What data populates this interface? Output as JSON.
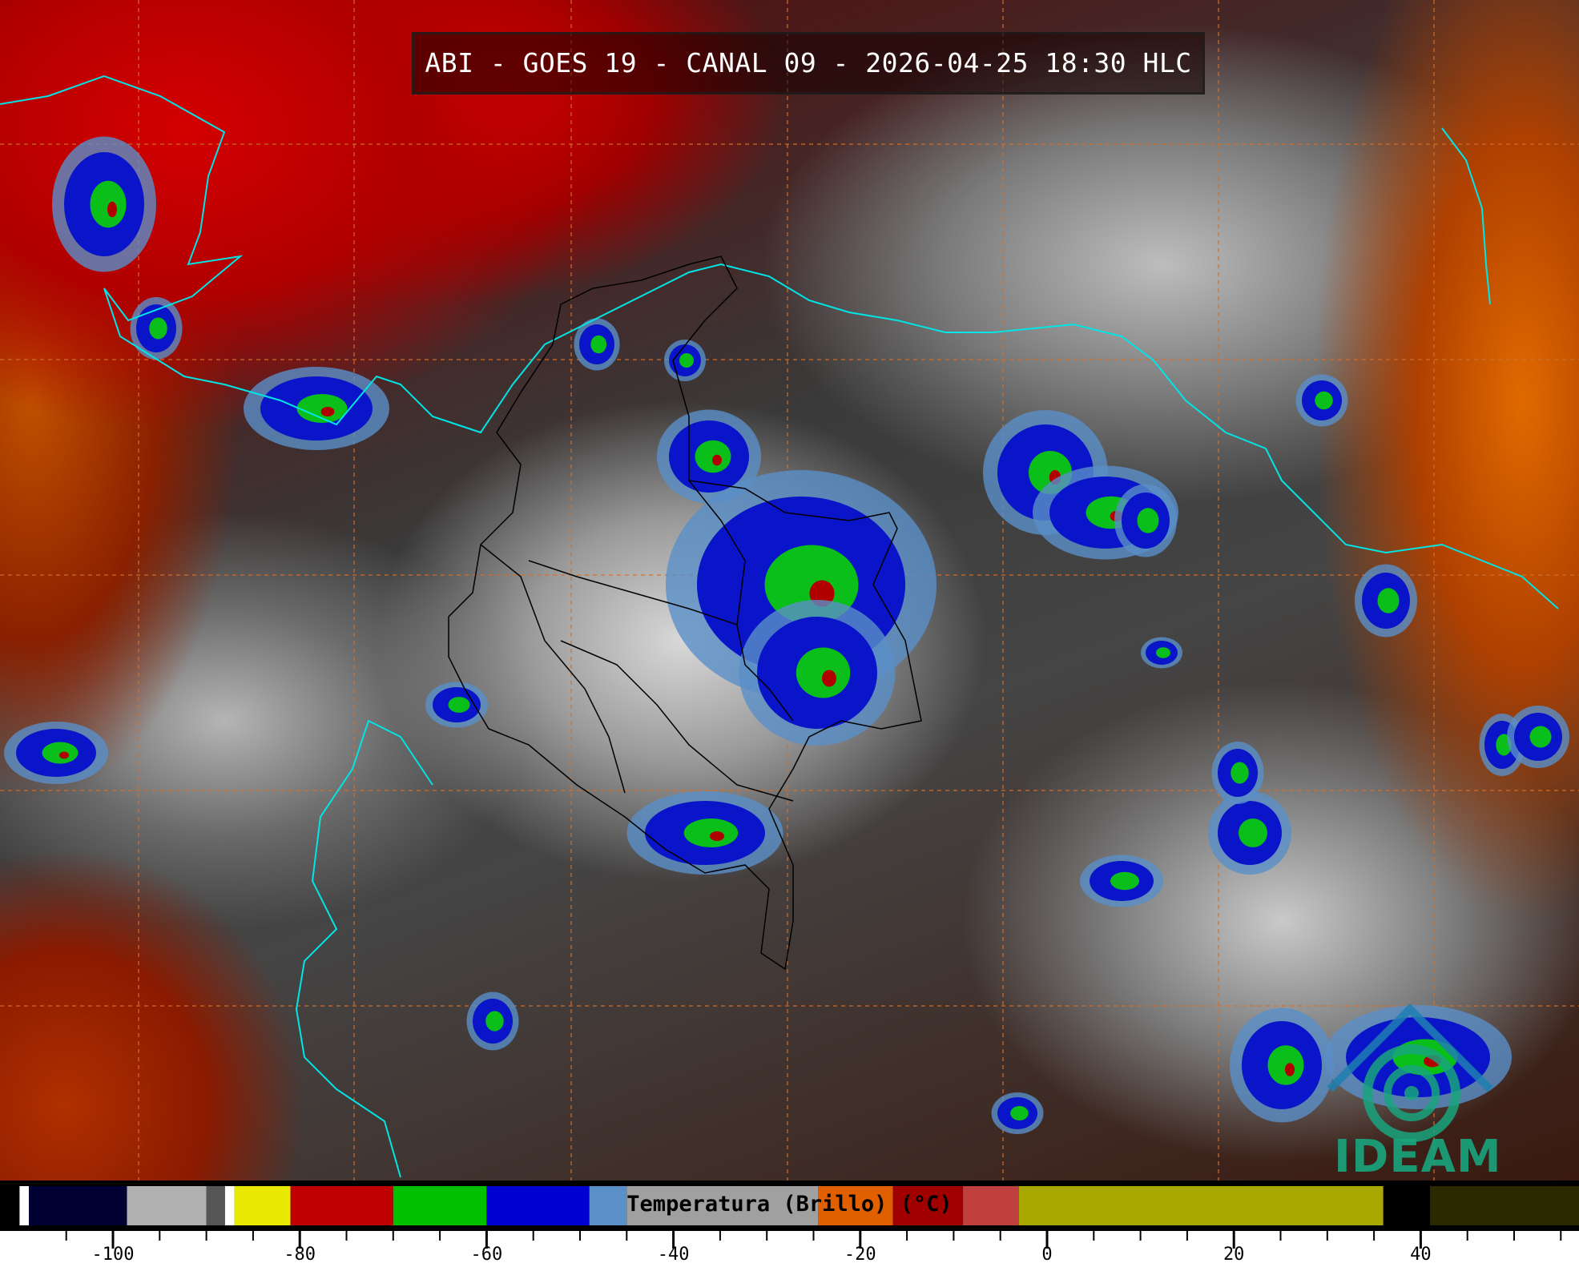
{
  "title": "ABI - GOES 19 - CANAL 09 - 2026-04-25 18:30 HLC",
  "logo": {
    "text": "IDEAM",
    "color": "#19a57e"
  },
  "colorbar": {
    "label": "Temperatura (Brillo) (°C)",
    "unit": "°C",
    "range": [
      -110,
      57
    ],
    "tick_labels": [
      "-100",
      "-80",
      "-60",
      "-40",
      "-20",
      "0",
      "20",
      "40"
    ],
    "tick_values": [
      -100,
      -80,
      -60,
      -40,
      -20,
      0,
      20,
      40
    ],
    "minor_tick_step": 5,
    "colors": [
      {
        "from": -110,
        "to": -109,
        "color": "#ffffff"
      },
      {
        "from": -109,
        "to": -98.5,
        "color": "#000033"
      },
      {
        "from": -98.5,
        "to": -90,
        "color": "#b0b0b0"
      },
      {
        "from": -90,
        "to": -88,
        "color": "#555555"
      },
      {
        "from": -88,
        "to": -87,
        "color": "#ffffff"
      },
      {
        "from": -87,
        "to": -81,
        "color": "#e8e800"
      },
      {
        "from": -81,
        "to": -70,
        "color": "#c00000"
      },
      {
        "from": -70,
        "to": -60,
        "color": "#00c000"
      },
      {
        "from": -60,
        "to": -49,
        "color": "#0000d0"
      },
      {
        "from": -49,
        "to": -45,
        "color": "#5a8fc8"
      },
      {
        "from": -45,
        "to": -24.5,
        "color": "#a0a0a0"
      },
      {
        "from": -24.5,
        "to": -16.5,
        "color": "#e06000"
      },
      {
        "from": -16.5,
        "to": -9,
        "color": "#a00000"
      },
      {
        "from": -9,
        "to": -3,
        "color": "#c04040"
      },
      {
        "from": -3,
        "to": 36,
        "color": "#a8a800"
      },
      {
        "from": 36,
        "to": 41,
        "color": "#000000"
      },
      {
        "from": 41,
        "to": 57,
        "color": "#2a2a00"
      }
    ]
  },
  "map": {
    "coastline_color": "#00e5e5",
    "border_color": "#000000",
    "graticule_color": "#d07030"
  }
}
